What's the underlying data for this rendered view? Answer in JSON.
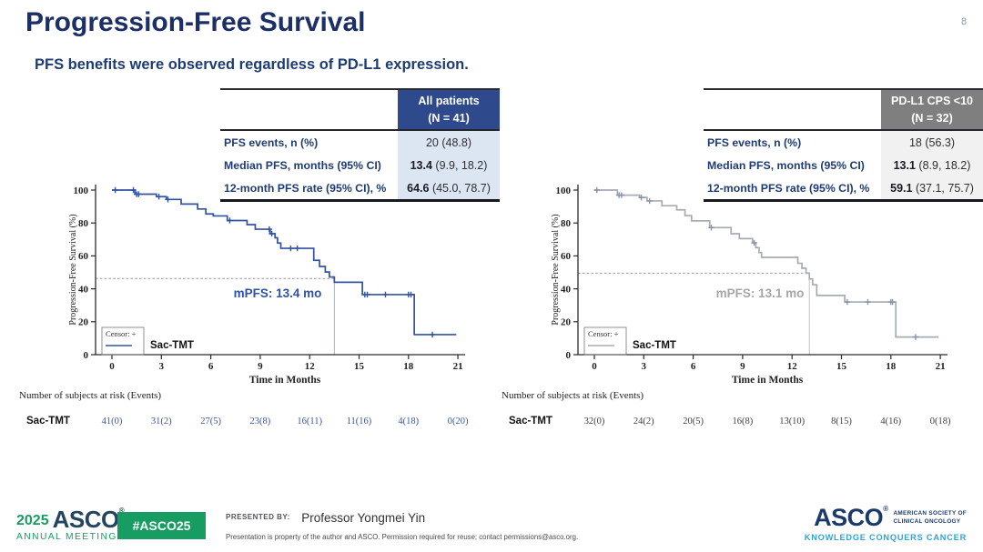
{
  "page_number": "8",
  "title": "Progression-Free Survival",
  "subtitle": "PFS benefits were observed regardless of PD-L1 expression.",
  "tables": [
    {
      "header_line1": "All patients",
      "header_line2": "(N = 41)",
      "header_bg": "#2e4a8c",
      "value_bg": "#dce6f2",
      "rows": [
        {
          "label": "PFS events, n (%)",
          "value_bold": "",
          "value_rest": "20 (48.8)"
        },
        {
          "label": "Median PFS, months (95% CI)",
          "value_bold": "13.4",
          "value_rest": " (9.9, 18.2)"
        },
        {
          "label": "12-month PFS rate (95% CI), %",
          "value_bold": "64.6",
          "value_rest": " (45.0, 78.7)"
        }
      ]
    },
    {
      "header_line1": "PD-L1 CPS <10",
      "header_line2": "(N = 32)",
      "header_bg": "#7f7f7f",
      "value_bg": "#f1f1f1",
      "rows": [
        {
          "label": "PFS events, n (%)",
          "value_bold": "",
          "value_rest": "18 (56.3)"
        },
        {
          "label": "Median PFS, months (95% CI)",
          "value_bold": "13.1",
          "value_rest": " (8.9, 18.2)"
        },
        {
          "label": "12-month PFS rate (95% CI), %",
          "value_bold": "59.1",
          "value_rest": " (37.1, 75.7)"
        }
      ]
    }
  ],
  "chart_data": [
    {
      "type": "line",
      "variant": "kaplan-meier-step",
      "group": "All patients",
      "xlabel": "Time in Months",
      "ylabel": "Progression-Free Survival (%)",
      "xlim": [
        0,
        21
      ],
      "ylim": [
        0,
        100
      ],
      "xticks": [
        0,
        3,
        6,
        9,
        12,
        15,
        18,
        21
      ],
      "yticks": [
        0,
        20,
        40,
        60,
        80,
        100
      ],
      "series": [
        {
          "name": "Sac-TMT",
          "steps": [
            [
              0,
              100
            ],
            [
              1.4,
              97.5
            ],
            [
              2.7,
              96
            ],
            [
              3.3,
              94.3
            ],
            [
              4.2,
              91.5
            ],
            [
              5.2,
              88.5
            ],
            [
              5.7,
              85.5
            ],
            [
              6.15,
              84.3
            ],
            [
              7.0,
              81.5
            ],
            [
              8.2,
              79
            ],
            [
              8.7,
              76.2
            ],
            [
              9.6,
              73.5
            ],
            [
              9.9,
              71
            ],
            [
              10.05,
              67.8
            ],
            [
              10.25,
              64.6
            ],
            [
              12.25,
              57.3
            ],
            [
              12.6,
              53.6
            ],
            [
              12.95,
              50.2
            ],
            [
              13.2,
              47.2
            ],
            [
              13.5,
              44
            ],
            [
              15.2,
              36.5
            ],
            [
              18.35,
              12.2
            ],
            [
              20.9,
              12.2
            ]
          ],
          "censors": [
            [
              0.2,
              100
            ],
            [
              1.3,
              100
            ],
            [
              1.5,
              97.5
            ],
            [
              1.62,
              97.5
            ],
            [
              2.85,
              96
            ],
            [
              3.4,
              94.3
            ],
            [
              7.15,
              81.5
            ],
            [
              9.55,
              76.2
            ],
            [
              9.7,
              73.5
            ],
            [
              10.85,
              64.6
            ],
            [
              11.25,
              64.6
            ],
            [
              15.35,
              36.5
            ],
            [
              15.5,
              36.5
            ],
            [
              16.6,
              36.5
            ],
            [
              18.0,
              36.5
            ],
            [
              18.15,
              36.5
            ],
            [
              19.45,
              12.2
            ]
          ]
        }
      ],
      "median_annotation": {
        "x": 13.5,
        "y_pct": 46.3,
        "label": "mPFS: 13.4 mo"
      },
      "legend": {
        "censor": "Censor: +",
        "series": "Sac-TMT"
      },
      "at_risk": {
        "title": "Number of subjects at risk (Events)",
        "row_label": "Sac-TMT",
        "times": [
          0,
          3,
          6,
          9,
          12,
          15,
          18,
          21
        ],
        "values": [
          "41(0)",
          "31(2)",
          "27(5)",
          "23(8)",
          "16(11)",
          "11(16)",
          "4(18)",
          "0(20)"
        ]
      },
      "colors": {
        "line": "#3253a1",
        "censor": "#3253a1",
        "mpfs": "#2f52a8",
        "at_risk": "#3a54a6",
        "vline": "#9fb3d9",
        "dashed": "#9a9a9a"
      }
    },
    {
      "type": "line",
      "variant": "kaplan-meier-step",
      "group": "PD-L1 CPS <10",
      "xlabel": "Time in Months",
      "ylabel": "Progression-Free Survival (%)",
      "xlim": [
        0,
        21
      ],
      "ylim": [
        0,
        100
      ],
      "xticks": [
        0,
        3,
        6,
        9,
        12,
        15,
        18,
        21
      ],
      "yticks": [
        0,
        20,
        40,
        60,
        80,
        100
      ],
      "series": [
        {
          "name": "Sac-TMT",
          "steps": [
            [
              0,
              100
            ],
            [
              1.4,
              96.9
            ],
            [
              2.75,
              95.5
            ],
            [
              3.2,
              93.4
            ],
            [
              4.1,
              90.5
            ],
            [
              5.0,
              88
            ],
            [
              5.5,
              84.5
            ],
            [
              5.9,
              81.3
            ],
            [
              7.0,
              77.2
            ],
            [
              8.3,
              73.5
            ],
            [
              8.8,
              70.5
            ],
            [
              9.6,
              68
            ],
            [
              9.8,
              65
            ],
            [
              10.0,
              62
            ],
            [
              10.15,
              59.1
            ],
            [
              12.35,
              55.5
            ],
            [
              12.6,
              52.5
            ],
            [
              12.85,
              49.5
            ],
            [
              13.05,
              46
            ],
            [
              13.25,
              42.5
            ],
            [
              13.5,
              36
            ],
            [
              15.2,
              32
            ],
            [
              18.3,
              10.7
            ],
            [
              20.9,
              10.7
            ]
          ],
          "censors": [
            [
              0.15,
              100
            ],
            [
              1.5,
              96.9
            ],
            [
              1.65,
              96.9
            ],
            [
              2.85,
              95.5
            ],
            [
              3.35,
              93.4
            ],
            [
              7.1,
              77.2
            ],
            [
              9.7,
              68
            ],
            [
              15.35,
              32
            ],
            [
              16.6,
              32
            ],
            [
              18.0,
              32
            ],
            [
              18.1,
              32
            ],
            [
              19.5,
              10.7
            ]
          ]
        }
      ],
      "median_annotation": {
        "x": 13.05,
        "y_pct": 49.5,
        "label": "mPFS: 13.1 mo"
      },
      "legend": {
        "censor": "Censor: +",
        "series": "Sac-TMT"
      },
      "at_risk": {
        "title": "Number of subjects at risk (Events)",
        "row_label": "Sac-TMT",
        "times": [
          0,
          3,
          6,
          9,
          12,
          15,
          18,
          21
        ],
        "values": [
          "32(0)",
          "24(2)",
          "20(5)",
          "16(8)",
          "13(10)",
          "8(15)",
          "4(16)",
          "0(18)"
        ]
      },
      "colors": {
        "line": "#a7acb2",
        "censor": "#8793a9",
        "mpfs": "#a6a6aa",
        "at_risk": "#3a3f47",
        "vline": "#bfc3c9",
        "dashed": "#9a9a9a"
      }
    }
  ],
  "footer": {
    "logo": {
      "year": "2025",
      "word": "ASCO",
      "sub": "ANNUAL MEETING"
    },
    "hashtag": "#ASCO25",
    "presented_by_label": "PRESENTED BY:",
    "presenter": "Professor Yongmei Yin",
    "disclaimer": "Presentation is property of the author and ASCO. Permission required for reuse; contact permissions@asco.org.",
    "asco": {
      "word": "ASCO",
      "org_line1": "AMERICAN SOCIETY OF",
      "org_line2": "CLINICAL ONCOLOGY",
      "tagline": "KNOWLEDGE CONQUERS CANCER"
    },
    "green": "#179c62",
    "navy": "#1b3a6b",
    "teal": "#2ea3d6"
  }
}
